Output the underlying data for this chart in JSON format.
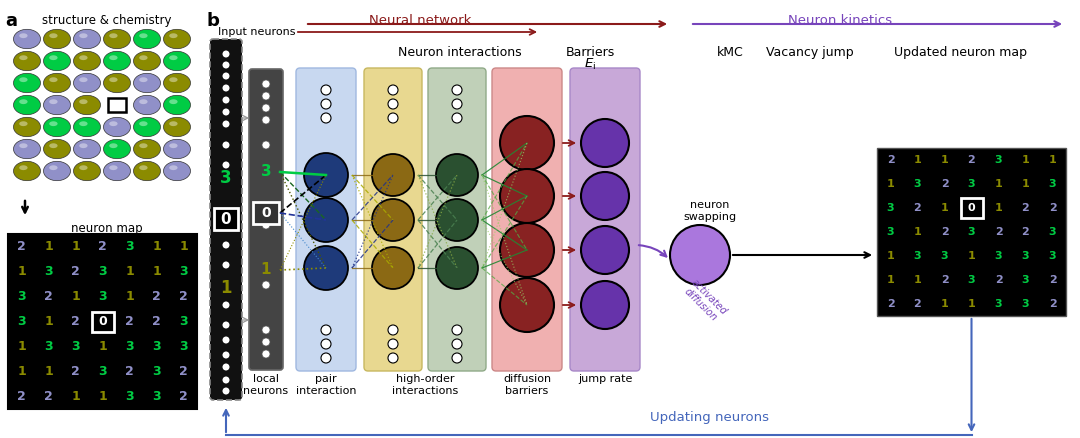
{
  "fig_width": 10.8,
  "fig_height": 4.38,
  "panel_a": {
    "atom_colors": {
      "purple": "#9090C8",
      "olive": "#8B8B00",
      "green": "#00CC44"
    },
    "atom_grid": [
      [
        "purple",
        "olive",
        "purple",
        "olive",
        "green",
        "olive"
      ],
      [
        "olive",
        "green",
        "olive",
        "green",
        "olive",
        "green"
      ],
      [
        "green",
        "olive",
        "purple",
        "olive",
        "purple",
        "olive"
      ],
      [
        "green",
        "purple",
        "olive",
        "vacancy",
        "purple",
        "green"
      ],
      [
        "olive",
        "green",
        "green",
        "purple",
        "green",
        "olive"
      ],
      [
        "purple",
        "olive",
        "purple",
        "green",
        "olive",
        "purple"
      ],
      [
        "olive",
        "purple",
        "olive",
        "purple",
        "olive",
        "purple"
      ]
    ],
    "neuron_map_data": [
      [
        2,
        1,
        1,
        2,
        3,
        1,
        1
      ],
      [
        1,
        3,
        2,
        3,
        1,
        1,
        3
      ],
      [
        3,
        2,
        1,
        3,
        1,
        2,
        2
      ],
      [
        3,
        1,
        2,
        0,
        2,
        2,
        3
      ],
      [
        1,
        3,
        3,
        1,
        3,
        3,
        3
      ],
      [
        1,
        1,
        2,
        3,
        2,
        3,
        2
      ],
      [
        2,
        2,
        1,
        1,
        3,
        3,
        2
      ]
    ],
    "neuron_map_colors": [
      [
        "#9090C8",
        "#8B8B00",
        "#8B8B00",
        "#9090C8",
        "#00CC44",
        "#8B8B00",
        "#8B8B00"
      ],
      [
        "#8B8B00",
        "#00CC44",
        "#9090C8",
        "#00CC44",
        "#8B8B00",
        "#8B8B00",
        "#00CC44"
      ],
      [
        "#00CC44",
        "#9090C8",
        "#8B8B00",
        "#00CC44",
        "#8B8B00",
        "#9090C8",
        "#9090C8"
      ],
      [
        "#00CC44",
        "#8B8B00",
        "#9090C8",
        "#ffffff",
        "#9090C8",
        "#9090C8",
        "#00CC44"
      ],
      [
        "#8B8B00",
        "#00CC44",
        "#00CC44",
        "#8B8B00",
        "#00CC44",
        "#00CC44",
        "#00CC44"
      ],
      [
        "#8B8B00",
        "#8B8B00",
        "#9090C8",
        "#00CC44",
        "#9090C8",
        "#00CC44",
        "#9090C8"
      ],
      [
        "#9090C8",
        "#9090C8",
        "#8B8B00",
        "#8B8B00",
        "#00CC44",
        "#00CC44",
        "#9090C8"
      ]
    ],
    "vacancy_row": 3,
    "vacancy_col": 3
  },
  "panel_b": {
    "updated_map_data": [
      [
        2,
        1,
        1,
        2,
        3,
        1,
        1
      ],
      [
        1,
        3,
        2,
        3,
        1,
        1,
        3
      ],
      [
        3,
        2,
        1,
        0,
        1,
        2,
        2
      ],
      [
        3,
        1,
        2,
        3,
        2,
        2,
        3
      ],
      [
        1,
        3,
        3,
        1,
        3,
        3,
        3
      ],
      [
        1,
        1,
        2,
        3,
        2,
        3,
        2
      ],
      [
        2,
        2,
        1,
        1,
        3,
        3,
        2
      ]
    ],
    "updated_map_colors": [
      [
        "#9090C8",
        "#8B8B00",
        "#8B8B00",
        "#9090C8",
        "#00CC44",
        "#8B8B00",
        "#8B8B00"
      ],
      [
        "#8B8B00",
        "#00CC44",
        "#9090C8",
        "#00CC44",
        "#8B8B00",
        "#8B8B00",
        "#00CC44"
      ],
      [
        "#00CC44",
        "#9090C8",
        "#8B8B00",
        "#ffffff",
        "#8B8B00",
        "#9090C8",
        "#9090C8"
      ],
      [
        "#00CC44",
        "#8B8B00",
        "#9090C8",
        "#00CC44",
        "#9090C8",
        "#9090C8",
        "#00CC44"
      ],
      [
        "#8B8B00",
        "#00CC44",
        "#00CC44",
        "#8B8B00",
        "#00CC44",
        "#00CC44",
        "#00CC44"
      ],
      [
        "#8B8B00",
        "#8B8B00",
        "#9090C8",
        "#00CC44",
        "#9090C8",
        "#00CC44",
        "#9090C8"
      ],
      [
        "#9090C8",
        "#9090C8",
        "#8B8B00",
        "#8B8B00",
        "#00CC44",
        "#00CC44",
        "#9090C8"
      ]
    ],
    "updated_vacancy_row": 2,
    "updated_vacancy_col": 3
  }
}
